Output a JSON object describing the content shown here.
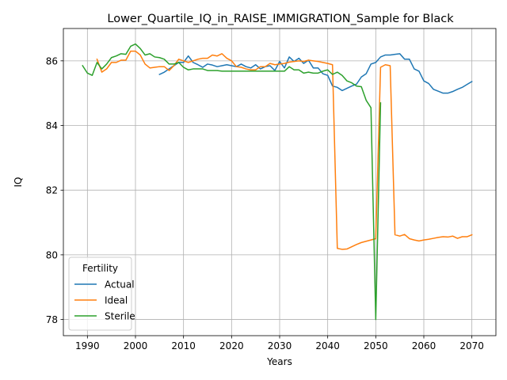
{
  "chart_data": {
    "type": "line",
    "title": "Lower_Quartile_IQ_in_RAISE_IMMIGRATION_Sample for Black",
    "xlabel": "Years",
    "ylabel": "IQ",
    "xlim": [
      1985,
      2075
    ],
    "ylim": [
      77.5,
      87.0
    ],
    "xticks": [
      1990,
      2000,
      2010,
      2020,
      2030,
      2040,
      2050,
      2060,
      2070
    ],
    "yticks": [
      78,
      80,
      82,
      84,
      86
    ],
    "grid": true,
    "legend": {
      "title": "Fertility",
      "placement": "lower-left"
    },
    "series": [
      {
        "name": "Actual",
        "color": "#1f77b4",
        "x": [
          2005,
          2006,
          2007,
          2008,
          2009,
          2010,
          2011,
          2012,
          2013,
          2014,
          2015,
          2016,
          2017,
          2018,
          2019,
          2020,
          2021,
          2022,
          2023,
          2024,
          2025,
          2026,
          2027,
          2028,
          2029,
          2030,
          2031,
          2032,
          2033,
          2034,
          2035,
          2036,
          2037,
          2038,
          2039,
          2040,
          2041,
          2042,
          2043,
          2044,
          2045,
          2046,
          2047,
          2048,
          2049,
          2050,
          2051,
          2052,
          2053,
          2054,
          2055,
          2056,
          2057,
          2058,
          2059,
          2060,
          2061,
          2062,
          2063,
          2064,
          2065,
          2066,
          2067,
          2068,
          2069,
          2070
        ],
        "y": [
          85.58,
          85.65,
          85.75,
          85.85,
          85.95,
          85.95,
          86.15,
          85.95,
          85.88,
          85.8,
          85.9,
          85.87,
          85.82,
          85.85,
          85.88,
          85.85,
          85.82,
          85.9,
          85.82,
          85.78,
          85.88,
          85.75,
          85.82,
          85.85,
          85.7,
          85.98,
          85.78,
          86.12,
          85.98,
          86.08,
          85.92,
          86.02,
          85.78,
          85.78,
          85.6,
          85.55,
          85.22,
          85.18,
          85.08,
          85.15,
          85.22,
          85.28,
          85.5,
          85.6,
          85.9,
          85.95,
          86.12,
          86.18,
          86.18,
          86.2,
          86.22,
          86.05,
          86.05,
          85.75,
          85.68,
          85.38,
          85.3,
          85.12,
          85.06,
          85.0,
          85.0,
          85.05,
          85.12,
          85.18,
          85.27,
          85.36
        ]
      },
      {
        "name": "Ideal",
        "color": "#ff7f0e",
        "x": [
          1992,
          1993,
          1994,
          1995,
          1996,
          1997,
          1998,
          1999,
          2000,
          2001,
          2002,
          2003,
          2004,
          2005,
          2006,
          2007,
          2008,
          2009,
          2010,
          2011,
          2012,
          2013,
          2014,
          2015,
          2016,
          2017,
          2018,
          2019,
          2020,
          2021,
          2022,
          2023,
          2024,
          2025,
          2026,
          2027,
          2028,
          2029,
          2030,
          2031,
          2032,
          2033,
          2034,
          2035,
          2036,
          2037,
          2038,
          2039,
          2040,
          2041,
          2042,
          2043,
          2044,
          2045,
          2046,
          2047,
          2048,
          2049,
          2050,
          2051,
          2052,
          2053,
          2054,
          2055,
          2056,
          2057,
          2058,
          2059,
          2060,
          2061,
          2062,
          2063,
          2064,
          2065,
          2066,
          2067,
          2068,
          2069,
          2070
        ],
        "y": [
          86.05,
          85.65,
          85.75,
          85.95,
          85.95,
          86.02,
          86.02,
          86.3,
          86.3,
          86.18,
          85.9,
          85.78,
          85.8,
          85.82,
          85.82,
          85.7,
          85.85,
          86.05,
          86.0,
          85.95,
          86.0,
          86.05,
          86.08,
          86.08,
          86.18,
          86.15,
          86.22,
          86.08,
          86.0,
          85.82,
          85.8,
          85.75,
          85.72,
          85.72,
          85.82,
          85.82,
          85.92,
          85.88,
          85.9,
          85.92,
          85.96,
          85.98,
          86.0,
          85.98,
          86.02,
          86.0,
          85.98,
          85.95,
          85.92,
          85.88,
          80.2,
          80.17,
          80.18,
          80.25,
          80.32,
          80.38,
          80.42,
          80.46,
          80.5,
          85.8,
          85.88,
          85.85,
          80.62,
          80.58,
          80.63,
          80.5,
          80.46,
          80.43,
          80.46,
          80.48,
          80.51,
          80.54,
          80.56,
          80.55,
          80.58,
          80.51,
          80.56,
          80.56,
          80.62
        ]
      },
      {
        "name": "Sterile",
        "color": "#2ca02c",
        "x": [
          1989,
          1990,
          1991,
          1992,
          1993,
          1994,
          1995,
          1996,
          1997,
          1998,
          1999,
          2000,
          2001,
          2002,
          2003,
          2004,
          2005,
          2006,
          2007,
          2008,
          2009,
          2010,
          2011,
          2012,
          2013,
          2014,
          2015,
          2016,
          2017,
          2018,
          2019,
          2020,
          2021,
          2022,
          2023,
          2024,
          2025,
          2026,
          2027,
          2028,
          2029,
          2030,
          2031,
          2032,
          2033,
          2034,
          2035,
          2036,
          2037,
          2038,
          2039,
          2040,
          2041,
          2042,
          2043,
          2044,
          2045,
          2046,
          2047,
          2048,
          2049,
          2050,
          2051
        ],
        "y": [
          85.85,
          85.62,
          85.55,
          85.95,
          85.75,
          85.9,
          86.1,
          86.15,
          86.22,
          86.2,
          86.45,
          86.52,
          86.38,
          86.18,
          86.22,
          86.12,
          86.1,
          86.05,
          85.9,
          85.9,
          85.95,
          85.8,
          85.72,
          85.75,
          85.75,
          85.75,
          85.7,
          85.7,
          85.7,
          85.68,
          85.68,
          85.68,
          85.68,
          85.68,
          85.68,
          85.68,
          85.68,
          85.68,
          85.68,
          85.68,
          85.68,
          85.68,
          85.68,
          85.82,
          85.72,
          85.72,
          85.62,
          85.65,
          85.62,
          85.62,
          85.68,
          85.72,
          85.58,
          85.65,
          85.55,
          85.38,
          85.32,
          85.22,
          85.2,
          84.78,
          84.55,
          78.0,
          84.7
        ]
      }
    ]
  }
}
